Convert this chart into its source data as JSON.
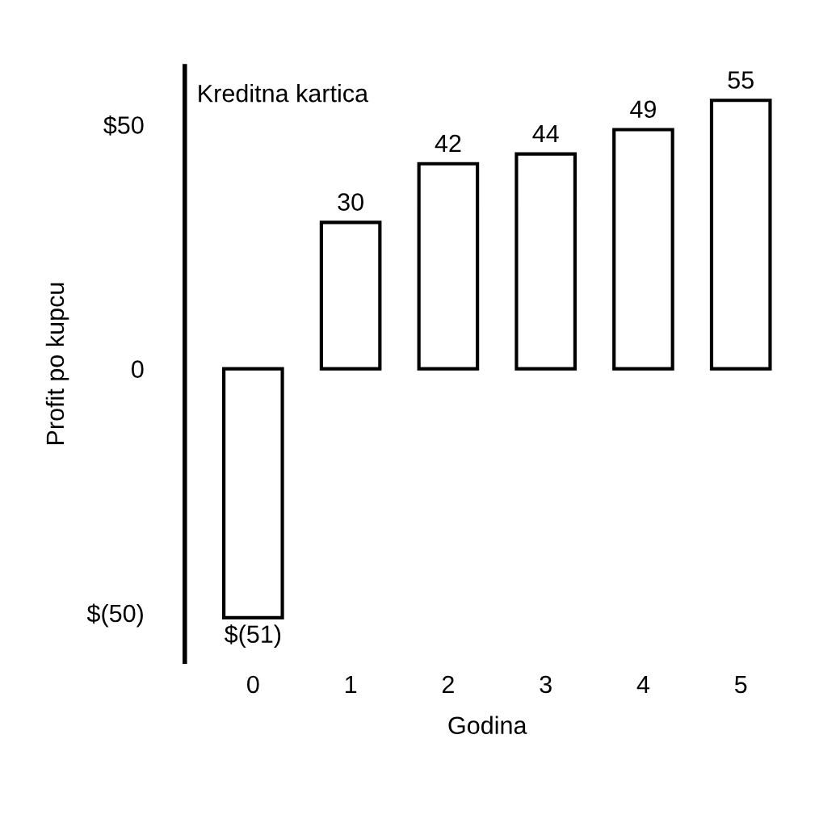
{
  "chart_data": {
    "type": "bar",
    "title": "Kreditna kartica",
    "xlabel": "Godina",
    "ylabel": "Profit po kupcu",
    "categories": [
      "0",
      "1",
      "2",
      "3",
      "4",
      "5"
    ],
    "values": [
      -51,
      30,
      42,
      44,
      49,
      55
    ],
    "value_labels": [
      "$(51)",
      "30",
      "42",
      "44",
      "49",
      "55"
    ],
    "color": "#ffffff",
    "ylim": [
      -60,
      62
    ],
    "yticks": [
      {
        "value": 50,
        "label": "$50"
      },
      0,
      {
        "value": -50,
        "label": "$(50)"
      }
    ],
    "grid": false
  }
}
